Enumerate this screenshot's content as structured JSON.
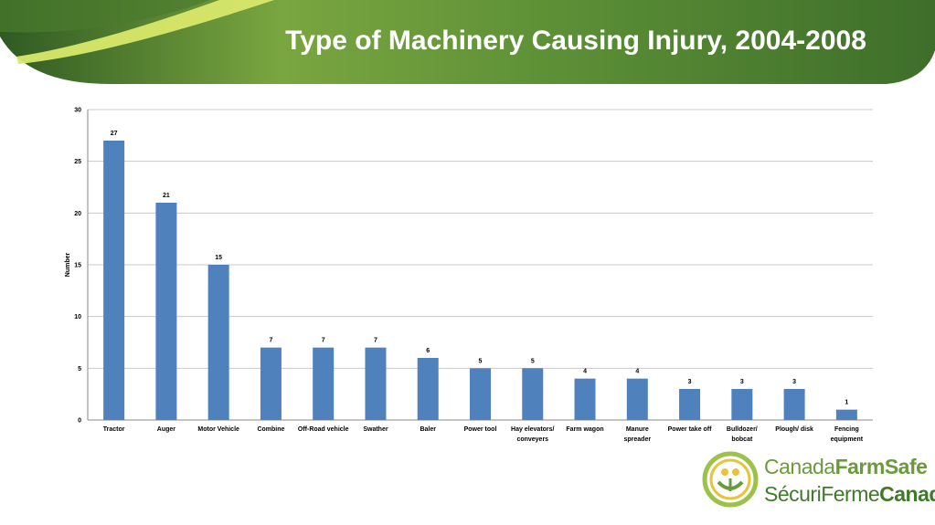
{
  "title": "Type of Machinery Causing Injury, 2004-2008",
  "colors": {
    "bar": "#4f81bd",
    "banner_dark": "#3f6f2c",
    "banner_light": "#7faa3e",
    "accent_yellow": "#d4e157"
  },
  "logo": {
    "line1_a": "Canada",
    "line1_b": "FarmSafe",
    "line2_a": "Sécuri",
    "line2_b": "Ferme",
    "line2_c": "Canada"
  },
  "chart_data": {
    "type": "bar",
    "categories": [
      [
        "Tractor"
      ],
      [
        "Auger"
      ],
      [
        "Motor Vehicle"
      ],
      [
        "Combine"
      ],
      [
        "Off-Road vehicle"
      ],
      [
        "Swather"
      ],
      [
        "Baler"
      ],
      [
        "Power tool"
      ],
      [
        "Hay elevators/",
        "conveyers"
      ],
      [
        "Farm wagon"
      ],
      [
        "Manure",
        "spreader"
      ],
      [
        "Power take off"
      ],
      [
        "Bulldozer/",
        "bobcat"
      ],
      [
        "Plough/ disk"
      ],
      [
        "Fencing",
        "equipment"
      ]
    ],
    "values": [
      27,
      21,
      15,
      7,
      7,
      7,
      6,
      5,
      5,
      4,
      4,
      3,
      3,
      3,
      1
    ],
    "ylabel": "Number",
    "ylim": [
      0,
      30
    ],
    "yticks": [
      0,
      5,
      10,
      15,
      20,
      25,
      30
    ],
    "grid": true
  }
}
